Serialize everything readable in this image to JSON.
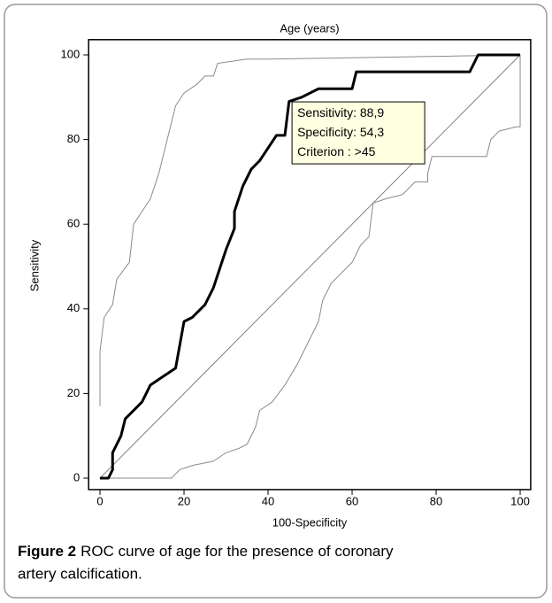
{
  "chart_data": {
    "type": "line",
    "title": "Age (years)",
    "xlabel": "100-Specificity",
    "ylabel": "Sensitivity",
    "xlim": [
      -2.7,
      102.5
    ],
    "ylim": [
      -2.7,
      103.6
    ],
    "xticks": [
      0,
      20,
      40,
      60,
      80,
      100
    ],
    "yticks": [
      0,
      20,
      40,
      60,
      80,
      100
    ],
    "series": [
      {
        "color": "#808080",
        "line_width": 1,
        "x": [
          0,
          100
        ],
        "values": [
          0,
          100
        ]
      },
      {
        "color": "#8a8a8a",
        "line_width": 1,
        "x": [
          0,
          0,
          1,
          3,
          4,
          7,
          8,
          10,
          12,
          14,
          15,
          16,
          17,
          18,
          20,
          23,
          25,
          27,
          28,
          35,
          40,
          100
        ],
        "values": [
          17,
          30,
          38,
          41,
          47,
          51,
          60,
          63,
          66,
          72,
          76,
          80,
          84,
          88,
          91,
          93,
          95,
          95,
          98,
          99,
          99,
          100
        ]
      },
      {
        "color": "#8a8a8a",
        "line_width": 1,
        "x": [
          0,
          10,
          17,
          19,
          22,
          27,
          30,
          33,
          35,
          37,
          38,
          41,
          44,
          47,
          50,
          52,
          53,
          55,
          58,
          60,
          62,
          64,
          65,
          68,
          72,
          75,
          78,
          78,
          79,
          90,
          92,
          93,
          95,
          99,
          100,
          100
        ],
        "values": [
          0,
          0,
          0,
          2,
          3,
          4,
          6,
          7,
          8,
          12,
          16,
          18,
          22,
          27,
          33,
          37,
          42,
          46,
          49,
          51,
          55,
          57,
          65,
          66,
          67,
          70,
          70,
          72,
          76,
          76,
          76,
          80,
          82,
          83,
          83,
          100
        ]
      },
      {
        "color": "#000000",
        "line_width": 3,
        "x": [
          0,
          2,
          3,
          3,
          5,
          6,
          8,
          10,
          12,
          15,
          18,
          20,
          22,
          25,
          27,
          30,
          32,
          32,
          34,
          36,
          38,
          40,
          42,
          44,
          45,
          48,
          52,
          55,
          60,
          61,
          70,
          80,
          88,
          90,
          100
        ],
        "values": [
          0,
          0,
          2,
          6,
          10,
          14,
          16,
          18,
          22,
          24,
          26,
          37,
          38,
          41,
          45,
          54,
          59,
          63,
          69,
          73,
          75,
          78,
          81,
          81,
          89,
          90,
          92,
          92,
          92,
          96,
          96,
          96,
          96,
          100,
          100
        ]
      }
    ],
    "annotation": {
      "x": 45.7,
      "y": 88.9,
      "lines": [
        "Sensitivity: 88,9",
        "Specificity: 54,3",
        "Criterion : >45"
      ]
    }
  },
  "caption": {
    "label": "Figure 2",
    "lines": [
      "ROC curve of age for the presence of coronary",
      "artery calcification."
    ]
  }
}
